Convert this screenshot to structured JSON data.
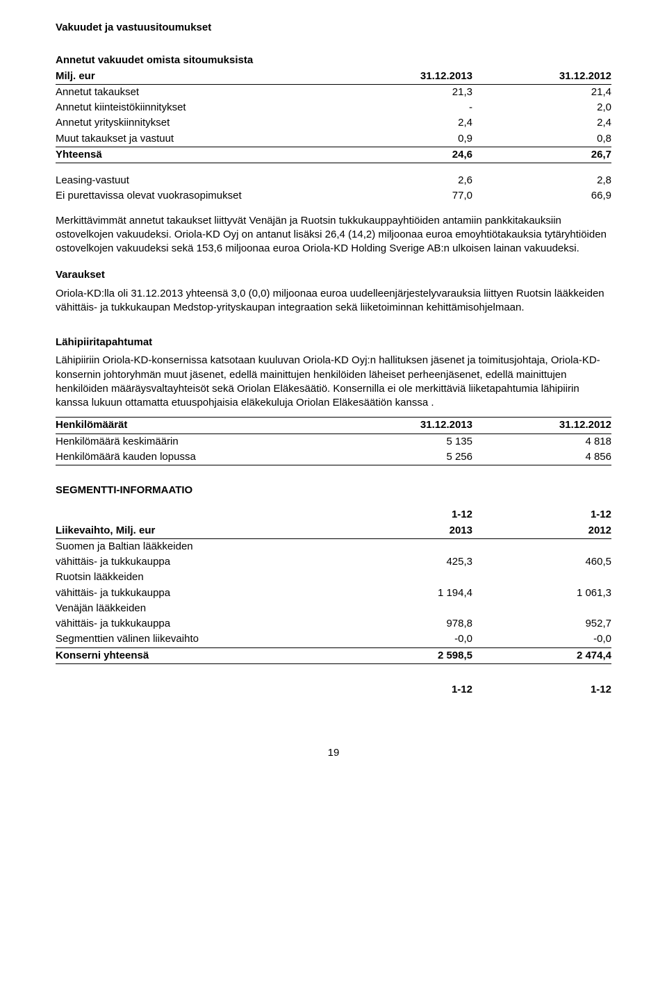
{
  "title": "Vakuudet ja vastuusitoumukset",
  "t1": {
    "heading": "Annetut vakuudet omista sitoumuksista",
    "unit": "Milj. eur",
    "col1": "31.12.2013",
    "col2": "31.12.2012",
    "rows": [
      {
        "label": "Annetut takaukset",
        "v1": "21,3",
        "v2": "21,4"
      },
      {
        "label": "Annetut kiinteistökiinnitykset",
        "v1": "-",
        "v2": "2,0"
      },
      {
        "label": "Annetut yrityskiinnitykset",
        "v1": "2,4",
        "v2": "2,4"
      },
      {
        "label": "Muut takaukset ja vastuut",
        "v1": "0,9",
        "v2": "0,8"
      }
    ],
    "total": {
      "label": "Yhteensä",
      "v1": "24,6",
      "v2": "26,7"
    }
  },
  "t2": {
    "rows": [
      {
        "label": "Leasing-vastuut",
        "v1": "2,6",
        "v2": "2,8"
      },
      {
        "label": "Ei purettavissa olevat vuokrasopimukset",
        "v1": "77,0",
        "v2": "66,9"
      }
    ]
  },
  "para1": "Merkittävimmät annetut takaukset liittyvät Venäjän ja Ruotsin tukkukauppayhtiöiden antamiin pankkitakauksiin ostovelkojen vakuudeksi. Oriola-KD Oyj on antanut lisäksi 26,4 (14,2) miljoonaa euroa emoyhtiötakauksia tytäryhtiöiden ostovelkojen vakuudeksi sekä 153,6 miljoonaa euroa Oriola-KD Holding Sverige AB:n ulkoisen lainan vakuudeksi.",
  "varaukset_h": "Varaukset",
  "para2": "Oriola-KD:lla oli 31.12.2013 yhteensä 3,0 (0,0) miljoonaa euroa uudelleenjärjestelyvarauksia liittyen Ruotsin lääkkeiden vähittäis- ja tukkukaupan Medstop-yrityskaupan integraation sekä liiketoiminnan kehittämisohjelmaan.",
  "lahip_h": "Lähipiiritapahtumat",
  "para3": "Lähipiiriin Oriola-KD-konsernissa katsotaan kuuluvan Oriola-KD Oyj:n hallituksen jäsenet ja toimitusjohtaja, Oriola-KD-konsernin johtoryhmän muut jäsenet, edellä mainittujen henkilöiden läheiset perheenjäsenet, edellä mainittujen henkilöiden määräysvaltayhteisöt sekä Oriolan Eläkesäätiö. Konsernilla ei ole merkittäviä liiketapahtumia lähipiirin kanssa lukuun ottamatta etuuspohjaisia eläkekuluja Oriolan Eläkesäätiön kanssa .",
  "t3": {
    "header": {
      "label": "Henkilömäärät",
      "v1": "31.12.2013",
      "v2": "31.12.2012"
    },
    "rows": [
      {
        "label": "Henkilömäärä keskimäärin",
        "v1": "5 135",
        "v2": "4 818"
      },
      {
        "label": "Henkilömäärä kauden lopussa",
        "v1": "5 256",
        "v2": "4 856"
      }
    ]
  },
  "seg_h": "SEGMENTTI-INFORMAATIO",
  "t4": {
    "topcols": {
      "v1": "1-12",
      "v2": "1-12"
    },
    "head": {
      "label": "Liikevaihto, Milj. eur",
      "v1": "2013",
      "v2": "2012"
    },
    "rows": [
      {
        "line1": "Suomen ja Baltian lääkkeiden",
        "line2": "vähittäis- ja tukkukauppa",
        "v1": "425,3",
        "v2": "460,5"
      },
      {
        "line1": "Ruotsin lääkkeiden",
        "line2": "vähittäis- ja tukkukauppa",
        "v1": "1 194,4",
        "v2": "1 061,3"
      },
      {
        "line1": "Venäjän lääkkeiden",
        "line2": "vähittäis- ja tukkukauppa",
        "v1": "978,8",
        "v2": "952,7"
      }
    ],
    "segrow": {
      "label": "Segmenttien välinen liikevaihto",
      "v1": "-0,0",
      "v2": "-0,0"
    },
    "total": {
      "label": "Konserni yhteensä",
      "v1": "2 598,5",
      "v2": "2 474,4"
    }
  },
  "bottomcols": {
    "v1": "1-12",
    "v2": "1-12"
  },
  "page_no": "19"
}
